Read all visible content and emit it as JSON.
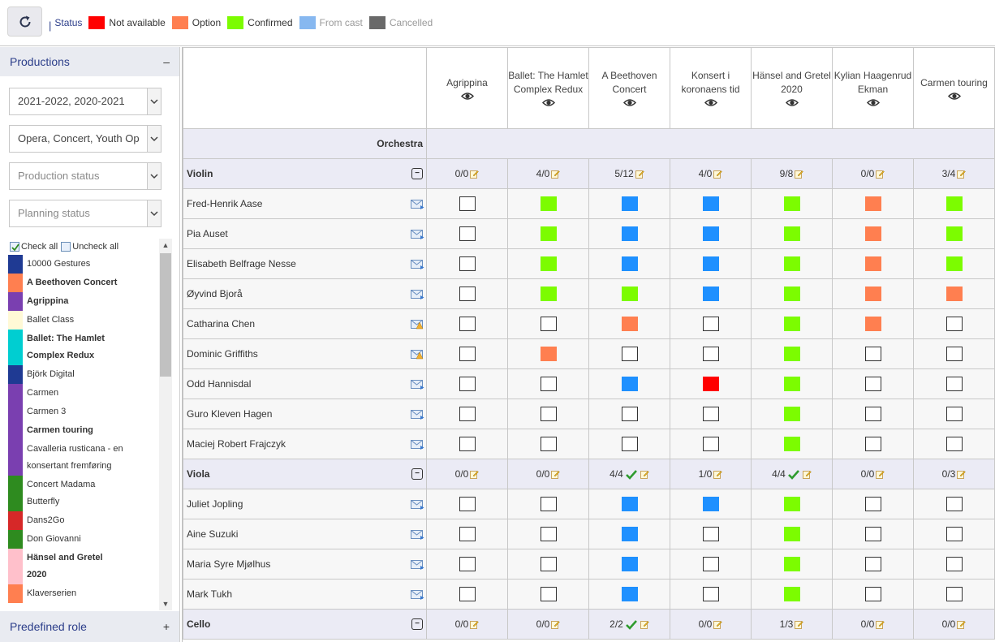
{
  "colors": {
    "not_available": "#ff0000",
    "option": "#ff7f50",
    "confirmed": "#7cfc00",
    "from_cast": "#1e90ff",
    "cancelled": "#696969"
  },
  "toolbar": {
    "refresh_icon": "refresh-icon",
    "separator": "|",
    "status_label": "Status",
    "legend": [
      {
        "label": "Not available",
        "color": "#ff0000",
        "muted": false
      },
      {
        "label": "Option",
        "color": "#ff7f50",
        "muted": false
      },
      {
        "label": "Confirmed",
        "color": "#7cfc00",
        "muted": false
      },
      {
        "label": "From cast",
        "color": "#87b8f0",
        "muted": true
      },
      {
        "label": "Cancelled",
        "color": "#696969",
        "muted": true
      }
    ]
  },
  "sidebar": {
    "title": "Productions",
    "toggle": "–",
    "filters": [
      {
        "value": "2021-2022, 2020-2021",
        "placeholder": false
      },
      {
        "value": "Opera, Concert, Youth Op",
        "placeholder": false
      },
      {
        "value": "Production status",
        "placeholder": true
      },
      {
        "value": "Planning status",
        "placeholder": true
      }
    ],
    "check_all": "Check all",
    "uncheck_all": "Uncheck all",
    "productions": [
      {
        "lines": [
          "10000 Gestures"
        ],
        "color": "#1f3a93",
        "bold": false
      },
      {
        "lines": [
          "A Beethoven Concert"
        ],
        "color": "#ff7f50",
        "bold": true
      },
      {
        "lines": [
          "Agrippina"
        ],
        "color": "#7a3fb0",
        "bold": true
      },
      {
        "lines": [
          "Ballet Class"
        ],
        "color": "#fff9d6",
        "bold": false
      },
      {
        "lines": [
          "Ballet: The Hamlet",
          "Complex Redux"
        ],
        "color": "#00ced1",
        "bold": true
      },
      {
        "lines": [
          "Björk Digital"
        ],
        "color": "#1f3a93",
        "bold": false
      },
      {
        "lines": [
          "Carmen"
        ],
        "color": "#7a3fb0",
        "bold": false
      },
      {
        "lines": [
          "Carmen 3"
        ],
        "color": "#7a3fb0",
        "bold": false
      },
      {
        "lines": [
          "Carmen touring"
        ],
        "color": "#7a3fb0",
        "bold": true
      },
      {
        "lines": [
          "Cavalleria rusticana - en",
          "konsertant fremføring"
        ],
        "color": "#7a3fb0",
        "bold": false
      },
      {
        "lines": [
          "Concert Madama",
          "Butterfly"
        ],
        "color": "#2e8b1f",
        "bold": false
      },
      {
        "lines": [
          "Dans2Go"
        ],
        "color": "#d62828",
        "bold": false
      },
      {
        "lines": [
          "Don Giovanni"
        ],
        "color": "#2e8b1f",
        "bold": false
      },
      {
        "lines": [
          "Hänsel and Gretel",
          "2020"
        ],
        "color": "#ffc0cb",
        "bold": true
      },
      {
        "lines": [
          "Klaverserien"
        ],
        "color": "#ff7f50",
        "bold": false
      }
    ],
    "predefined_role": "Predefined role",
    "predefined_toggle": "+"
  },
  "grid": {
    "columns": [
      {
        "lines": [
          "Agrippina"
        ]
      },
      {
        "lines": [
          "Ballet: The Hamlet",
          "Complex Redux"
        ]
      },
      {
        "lines": [
          "A Beethoven",
          "Concert"
        ]
      },
      {
        "lines": [
          "Konsert i",
          "koronaens tid"
        ]
      },
      {
        "lines": [
          "Hänsel and Gretel",
          "2020"
        ]
      },
      {
        "lines": [
          "Kylian Haagenrud",
          "Ekman"
        ]
      },
      {
        "lines": [
          "Carmen touring"
        ]
      }
    ],
    "section": "Orchestra",
    "groups": [
      {
        "name": "Violin",
        "counts": [
          {
            "text": "0/0",
            "check": false
          },
          {
            "text": "4/0",
            "check": false
          },
          {
            "text": "5/12",
            "check": false
          },
          {
            "text": "4/0",
            "check": false
          },
          {
            "text": "9/8",
            "check": false
          },
          {
            "text": "0/0",
            "check": false
          },
          {
            "text": "3/4",
            "check": false
          }
        ],
        "members": [
          {
            "name": "Fred-Henrik Aase",
            "icon": "mail",
            "cells": [
              "empty",
              "confirmed",
              "from_cast",
              "from_cast",
              "confirmed",
              "option",
              "confirmed"
            ]
          },
          {
            "name": "Pia Auset",
            "icon": "mail",
            "cells": [
              "empty",
              "confirmed",
              "from_cast",
              "from_cast",
              "confirmed",
              "option",
              "confirmed"
            ]
          },
          {
            "name": "Elisabeth Belfrage Nesse",
            "icon": "mail",
            "cells": [
              "empty",
              "confirmed",
              "from_cast",
              "from_cast",
              "confirmed",
              "option",
              "confirmed"
            ]
          },
          {
            "name": "Øyvind Bjorå",
            "icon": "mail",
            "cells": [
              "empty",
              "confirmed",
              "confirmed",
              "from_cast",
              "confirmed",
              "option",
              "option"
            ]
          },
          {
            "name": "Catharina Chen",
            "icon": "mail-warn",
            "cells": [
              "empty",
              "empty",
              "option",
              "empty",
              "confirmed",
              "option",
              "empty"
            ]
          },
          {
            "name": "Dominic Griffiths",
            "icon": "mail-warn",
            "cells": [
              "empty",
              "option",
              "empty",
              "empty",
              "confirmed",
              "empty",
              "empty"
            ]
          },
          {
            "name": "Odd Hannisdal",
            "icon": "mail",
            "cells": [
              "empty",
              "empty",
              "from_cast",
              "not_available",
              "confirmed",
              "empty",
              "empty"
            ]
          },
          {
            "name": "Guro Kleven Hagen",
            "icon": "mail",
            "cells": [
              "empty",
              "empty",
              "empty",
              "empty",
              "confirmed",
              "empty",
              "empty"
            ]
          },
          {
            "name": "Maciej Robert Frajczyk",
            "icon": "mail",
            "cells": [
              "empty",
              "empty",
              "empty",
              "empty",
              "confirmed",
              "empty",
              "empty"
            ]
          }
        ]
      },
      {
        "name": "Viola",
        "counts": [
          {
            "text": "0/0",
            "check": false
          },
          {
            "text": "0/0",
            "check": false
          },
          {
            "text": "4/4",
            "check": true
          },
          {
            "text": "1/0",
            "check": false
          },
          {
            "text": "4/4",
            "check": true
          },
          {
            "text": "0/0",
            "check": false
          },
          {
            "text": "0/3",
            "check": false
          }
        ],
        "members": [
          {
            "name": "Juliet Jopling",
            "icon": "mail",
            "cells": [
              "empty",
              "empty",
              "from_cast",
              "from_cast",
              "confirmed",
              "empty",
              "empty"
            ]
          },
          {
            "name": "Aine Suzuki",
            "icon": "mail",
            "cells": [
              "empty",
              "empty",
              "from_cast",
              "empty",
              "confirmed",
              "empty",
              "empty"
            ]
          },
          {
            "name": "Maria Syre Mjølhus",
            "icon": "mail",
            "cells": [
              "empty",
              "empty",
              "from_cast",
              "empty",
              "confirmed",
              "empty",
              "empty"
            ]
          },
          {
            "name": "Mark Tukh",
            "icon": "mail",
            "cells": [
              "empty",
              "empty",
              "from_cast",
              "empty",
              "confirmed",
              "empty",
              "empty"
            ]
          }
        ]
      },
      {
        "name": "Cello",
        "counts": [
          {
            "text": "0/0",
            "check": false
          },
          {
            "text": "0/0",
            "check": false
          },
          {
            "text": "2/2",
            "check": true
          },
          {
            "text": "0/0",
            "check": false
          },
          {
            "text": "1/3",
            "check": false
          },
          {
            "text": "0/0",
            "check": false
          },
          {
            "text": "0/0",
            "check": false
          }
        ],
        "members": []
      }
    ]
  }
}
